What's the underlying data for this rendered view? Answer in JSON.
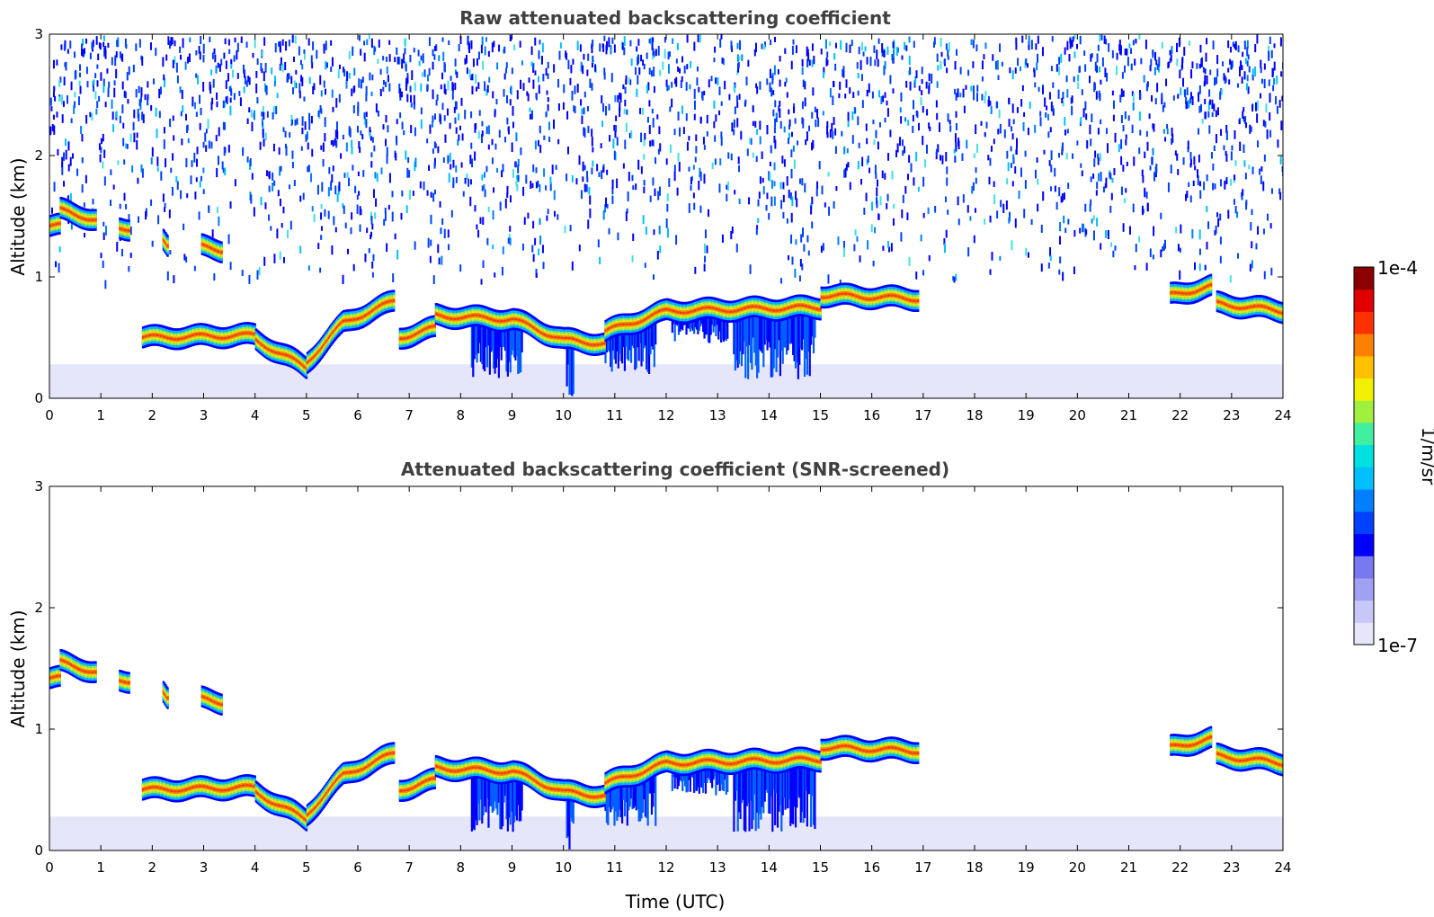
{
  "chart_data": [
    {
      "type": "heatmap",
      "title": "Raw attenuated backscattering coefficient",
      "xlabel": "",
      "ylabel": "Altitude (km)",
      "xlim": [
        0,
        24
      ],
      "ylim": [
        0,
        3
      ],
      "xticks": [
        "0",
        "1",
        "2",
        "3",
        "4",
        "5",
        "6",
        "7",
        "8",
        "9",
        "10",
        "11",
        "12",
        "13",
        "14",
        "15",
        "16",
        "17",
        "18",
        "19",
        "20",
        "21",
        "22",
        "23",
        "24"
      ],
      "yticks": [
        "0",
        "1",
        "2",
        "3"
      ],
      "noise": {
        "top_density": 0.55,
        "low_alt_haze_top_km": 0.28
      },
      "layers": [
        {
          "t0": 0.0,
          "t1": 0.2,
          "alt_km": [
            1.42,
            1.42
          ]
        },
        {
          "t0": 0.2,
          "t1": 0.9,
          "alt_km": [
            1.55,
            1.47
          ]
        },
        {
          "t0": 1.35,
          "t1": 1.55,
          "alt_km": [
            1.4,
            1.4
          ]
        },
        {
          "t0": 2.2,
          "t1": 2.3,
          "alt_km": [
            1.3,
            1.25
          ]
        },
        {
          "t0": 2.95,
          "t1": 3.35,
          "alt_km": [
            1.25,
            1.22
          ]
        },
        {
          "t0": 1.8,
          "t1": 4.0,
          "alt_km": [
            0.5,
            0.52
          ]
        },
        {
          "t0": 4.0,
          "t1": 5.0,
          "alt_km": [
            0.48,
            0.25
          ]
        },
        {
          "t0": 5.0,
          "t1": 5.7,
          "alt_km": [
            0.3,
            0.62
          ]
        },
        {
          "t0": 5.7,
          "t1": 6.7,
          "alt_km": [
            0.62,
            0.8
          ]
        },
        {
          "t0": 6.8,
          "t1": 7.5,
          "alt_km": [
            0.5,
            0.58
          ]
        },
        {
          "t0": 7.5,
          "t1": 9.0,
          "alt_km": [
            0.68,
            0.65
          ]
        },
        {
          "t0": 9.0,
          "t1": 10.0,
          "alt_km": [
            0.65,
            0.48
          ]
        },
        {
          "t0": 10.0,
          "t1": 10.8,
          "alt_km": [
            0.48,
            0.45
          ]
        },
        {
          "t0": 10.8,
          "t1": 12.0,
          "alt_km": [
            0.55,
            0.72
          ]
        },
        {
          "t0": 12.0,
          "t1": 15.0,
          "alt_km": [
            0.72,
            0.75
          ]
        },
        {
          "t0": 15.0,
          "t1": 16.9,
          "alt_km": [
            0.85,
            0.82
          ]
        },
        {
          "t0": 21.8,
          "t1": 22.6,
          "alt_km": [
            0.85,
            0.92
          ]
        },
        {
          "t0": 22.7,
          "t1": 24.0,
          "alt_km": [
            0.78,
            0.72
          ]
        }
      ],
      "fall_streaks": [
        {
          "t0": 8.2,
          "t1": 9.2,
          "bottom_km": 0.15
        },
        {
          "t0": 10.05,
          "t1": 10.2,
          "bottom_km": 0.0
        },
        {
          "t0": 10.8,
          "t1": 11.8,
          "bottom_km": 0.2
        },
        {
          "t0": 12.1,
          "t1": 13.2,
          "bottom_km": 0.45
        },
        {
          "t0": 13.3,
          "t1": 14.9,
          "bottom_km": 0.15
        }
      ]
    },
    {
      "type": "heatmap",
      "title": "Attenuated backscattering coefficient (SNR-screened)",
      "xlabel": "Time (UTC)",
      "ylabel": "Altitude (km)",
      "xlim": [
        0,
        24
      ],
      "ylim": [
        0,
        3
      ],
      "xticks": [
        "0",
        "1",
        "2",
        "3",
        "4",
        "5",
        "6",
        "7",
        "8",
        "9",
        "10",
        "11",
        "12",
        "13",
        "14",
        "15",
        "16",
        "17",
        "18",
        "19",
        "20",
        "21",
        "22",
        "23",
        "24"
      ],
      "yticks": [
        "0",
        "1",
        "2",
        "3"
      ],
      "noise": {
        "top_density": 0.0,
        "low_alt_haze_top_km": 0.28
      },
      "layers": "same as raw panel",
      "fall_streaks": "same as raw panel"
    }
  ],
  "colorbar": {
    "label": "1/m/sr",
    "max_label": "1e-4",
    "min_label": "1e-7",
    "scale": "log",
    "range": [
      1e-07,
      0.0001
    ],
    "colors": [
      "#e6e6fa",
      "#c8c8f8",
      "#a0a0f4",
      "#7878f0",
      "#0000ff",
      "#0040ff",
      "#0080ff",
      "#00c0ff",
      "#00e0e0",
      "#40f0a0",
      "#a0f040",
      "#f0f000",
      "#ffc000",
      "#ff8000",
      "#ff3000",
      "#e00000",
      "#8b0000"
    ]
  }
}
